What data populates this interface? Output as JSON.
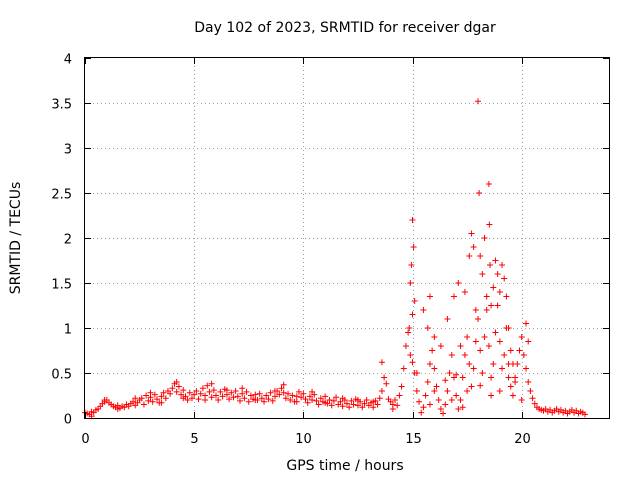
{
  "chart_data": {
    "type": "scatter",
    "title": "Day 102 of 2023, SRMTID for receiver dgar",
    "xlabel": "GPS time / hours",
    "ylabel": "SRMTID / TECUs",
    "xlim": [
      0,
      24
    ],
    "ylim": [
      0,
      4
    ],
    "xticks": [
      0,
      5,
      10,
      15,
      20
    ],
    "xtick_labels": [
      "0",
      "5",
      "10",
      "15",
      "20"
    ],
    "yticks": [
      0,
      0.5,
      1,
      1.5,
      2,
      2.5,
      3,
      3.5,
      4
    ],
    "ytick_labels": [
      "0",
      "0.5",
      "1",
      "1.5",
      "2",
      "2.5",
      "3",
      "3.5",
      "4"
    ],
    "grid": true,
    "marker": "+",
    "color": "#ff0000",
    "series": [
      {
        "name": "SRMTID",
        "points": [
          [
            0.0,
            0.06
          ],
          [
            0.1,
            0.05
          ],
          [
            0.2,
            0.04
          ],
          [
            0.3,
            0.07
          ],
          [
            0.4,
            0.06
          ],
          [
            0.5,
            0.09
          ],
          [
            0.6,
            0.1
          ],
          [
            0.7,
            0.13
          ],
          [
            0.8,
            0.16
          ],
          [
            0.9,
            0.18
          ],
          [
            1.0,
            0.2
          ],
          [
            1.1,
            0.17
          ],
          [
            1.2,
            0.15
          ],
          [
            1.3,
            0.13
          ],
          [
            1.4,
            0.12
          ],
          [
            1.5,
            0.14
          ],
          [
            1.6,
            0.11
          ],
          [
            1.7,
            0.13
          ],
          [
            1.8,
            0.12
          ],
          [
            1.9,
            0.15
          ],
          [
            2.0,
            0.13
          ],
          [
            2.1,
            0.16
          ],
          [
            2.2,
            0.18
          ],
          [
            2.3,
            0.14
          ],
          [
            2.4,
            0.17
          ],
          [
            2.5,
            0.2
          ],
          [
            2.6,
            0.22
          ],
          [
            2.7,
            0.15
          ],
          [
            2.8,
            0.25
          ],
          [
            2.9,
            0.19
          ],
          [
            3.0,
            0.23
          ],
          [
            3.1,
            0.18
          ],
          [
            3.2,
            0.26
          ],
          [
            3.3,
            0.21
          ],
          [
            3.4,
            0.17
          ],
          [
            3.5,
            0.24
          ],
          [
            3.6,
            0.28
          ],
          [
            3.7,
            0.22
          ],
          [
            3.8,
            0.3
          ],
          [
            3.9,
            0.27
          ],
          [
            4.0,
            0.33
          ],
          [
            4.1,
            0.38
          ],
          [
            4.2,
            0.29
          ],
          [
            4.3,
            0.35
          ],
          [
            4.4,
            0.26
          ],
          [
            4.5,
            0.31
          ],
          [
            4.6,
            0.24
          ],
          [
            4.7,
            0.2
          ],
          [
            4.8,
            0.28
          ],
          [
            4.9,
            0.22
          ],
          [
            5.0,
            0.26
          ],
          [
            5.1,
            0.3
          ],
          [
            5.2,
            0.21
          ],
          [
            5.3,
            0.27
          ],
          [
            5.4,
            0.33
          ],
          [
            5.5,
            0.25
          ],
          [
            5.6,
            0.36
          ],
          [
            5.7,
            0.29
          ],
          [
            5.8,
            0.23
          ],
          [
            5.9,
            0.31
          ],
          [
            6.0,
            0.25
          ],
          [
            6.1,
            0.2
          ],
          [
            6.2,
            0.29
          ],
          [
            6.3,
            0.24
          ],
          [
            6.4,
            0.32
          ],
          [
            6.5,
            0.26
          ],
          [
            6.6,
            0.21
          ],
          [
            6.7,
            0.28
          ],
          [
            6.8,
            0.23
          ],
          [
            6.9,
            0.3
          ],
          [
            7.0,
            0.24
          ],
          [
            7.1,
            0.19
          ],
          [
            7.2,
            0.27
          ],
          [
            7.3,
            0.22
          ],
          [
            7.4,
            0.29
          ],
          [
            7.5,
            0.18
          ],
          [
            7.6,
            0.25
          ],
          [
            7.7,
            0.21
          ],
          [
            7.8,
            0.26
          ],
          [
            7.9,
            0.2
          ],
          [
            8.0,
            0.27
          ],
          [
            8.1,
            0.22
          ],
          [
            8.2,
            0.18
          ],
          [
            8.3,
            0.25
          ],
          [
            8.4,
            0.21
          ],
          [
            8.5,
            0.28
          ],
          [
            8.6,
            0.19
          ],
          [
            8.7,
            0.24
          ],
          [
            8.8,
            0.3
          ],
          [
            8.9,
            0.26
          ],
          [
            9.0,
            0.33
          ],
          [
            9.1,
            0.28
          ],
          [
            9.2,
            0.22
          ],
          [
            9.3,
            0.27
          ],
          [
            9.4,
            0.2
          ],
          [
            9.5,
            0.25
          ],
          [
            9.6,
            0.18
          ],
          [
            9.7,
            0.24
          ],
          [
            9.8,
            0.29
          ],
          [
            9.9,
            0.23
          ],
          [
            10.0,
            0.27
          ],
          [
            10.1,
            0.21
          ],
          [
            10.2,
            0.17
          ],
          [
            10.3,
            0.24
          ],
          [
            10.4,
            0.2
          ],
          [
            10.5,
            0.26
          ],
          [
            10.6,
            0.19
          ],
          [
            10.7,
            0.15
          ],
          [
            10.8,
            0.22
          ],
          [
            10.9,
            0.18
          ],
          [
            11.0,
            0.24
          ],
          [
            11.1,
            0.16
          ],
          [
            11.2,
            0.2
          ],
          [
            11.3,
            0.14
          ],
          [
            11.4,
            0.19
          ],
          [
            11.5,
            0.23
          ],
          [
            11.6,
            0.15
          ],
          [
            11.7,
            0.18
          ],
          [
            11.8,
            0.13
          ],
          [
            11.9,
            0.2
          ],
          [
            12.0,
            0.16
          ],
          [
            12.1,
            0.12
          ],
          [
            12.2,
            0.19
          ],
          [
            12.3,
            0.15
          ],
          [
            12.4,
            0.21
          ],
          [
            12.5,
            0.14
          ],
          [
            12.6,
            0.18
          ],
          [
            12.7,
            0.12
          ],
          [
            12.8,
            0.16
          ],
          [
            12.9,
            0.2
          ],
          [
            13.0,
            0.14
          ],
          [
            13.1,
            0.17
          ],
          [
            13.2,
            0.12
          ],
          [
            13.3,
            0.19
          ],
          [
            13.4,
            0.15
          ],
          [
            13.5,
            0.22
          ],
          [
            13.6,
            0.3
          ],
          [
            13.7,
            0.45
          ],
          [
            13.8,
            0.38
          ],
          [
            13.9,
            0.21
          ],
          [
            14.0,
            0.18
          ],
          [
            14.1,
            0.15
          ],
          [
            14.2,
            0.2
          ],
          [
            14.3,
            0.14
          ],
          [
            14.4,
            0.25
          ],
          [
            14.5,
            0.35
          ],
          [
            14.6,
            0.55
          ],
          [
            14.7,
            0.8
          ],
          [
            14.8,
            0.95
          ],
          [
            14.9,
            0.7
          ],
          [
            15.0,
            0.62
          ],
          [
            15.1,
            0.5
          ],
          [
            15.2,
            0.3
          ],
          [
            15.3,
            0.18
          ],
          [
            15.4,
            0.06
          ],
          [
            15.5,
            0.12
          ],
          [
            15.6,
            0.25
          ],
          [
            15.7,
            0.4
          ],
          [
            15.8,
            0.6
          ],
          [
            15.9,
            0.75
          ],
          [
            16.0,
            0.55
          ],
          [
            16.1,
            0.35
          ],
          [
            16.2,
            0.2
          ],
          [
            16.3,
            0.1
          ],
          [
            16.4,
            0.05
          ],
          [
            16.5,
            0.15
          ],
          [
            16.6,
            0.3
          ],
          [
            16.7,
            0.5
          ],
          [
            16.8,
            0.7
          ],
          [
            16.9,
            0.45
          ],
          [
            17.0,
            0.25
          ],
          [
            17.1,
            0.1
          ],
          [
            17.2,
            0.2
          ],
          [
            17.3,
            0.45
          ],
          [
            17.4,
            0.7
          ],
          [
            17.5,
            0.9
          ],
          [
            17.6,
            0.6
          ],
          [
            17.7,
            0.35
          ],
          [
            17.8,
            0.55
          ],
          [
            17.9,
            0.85
          ],
          [
            18.0,
            1.1
          ],
          [
            18.1,
            0.75
          ],
          [
            18.2,
            0.5
          ],
          [
            18.3,
            0.9
          ],
          [
            18.4,
            1.2
          ],
          [
            18.5,
            0.8
          ],
          [
            18.6,
            0.45
          ],
          [
            18.7,
            0.6
          ],
          [
            18.8,
            0.95
          ],
          [
            18.9,
            1.25
          ],
          [
            19.0,
            0.85
          ],
          [
            19.1,
            0.55
          ],
          [
            19.2,
            0.7
          ],
          [
            19.3,
            1.0
          ],
          [
            19.4,
            0.6
          ],
          [
            19.5,
            0.35
          ],
          [
            19.6,
            0.25
          ],
          [
            19.7,
            0.4
          ],
          [
            19.8,
            0.6
          ],
          [
            19.9,
            0.75
          ],
          [
            20.0,
            0.9
          ],
          [
            20.1,
            0.7
          ],
          [
            20.2,
            0.55
          ],
          [
            20.3,
            0.4
          ],
          [
            20.4,
            0.3
          ],
          [
            20.5,
            0.22
          ],
          [
            20.6,
            0.16
          ],
          [
            20.7,
            0.12
          ],
          [
            20.8,
            0.1
          ],
          [
            20.9,
            0.09
          ],
          [
            21.0,
            0.08
          ],
          [
            21.1,
            0.1
          ],
          [
            21.2,
            0.07
          ],
          [
            21.3,
            0.09
          ],
          [
            21.4,
            0.06
          ],
          [
            21.5,
            0.08
          ],
          [
            21.6,
            0.1
          ],
          [
            21.7,
            0.07
          ],
          [
            21.8,
            0.09
          ],
          [
            21.9,
            0.06
          ],
          [
            22.0,
            0.08
          ],
          [
            22.1,
            0.05
          ],
          [
            22.2,
            0.07
          ],
          [
            22.3,
            0.09
          ],
          [
            22.4,
            0.06
          ],
          [
            22.5,
            0.08
          ],
          [
            22.6,
            0.05
          ],
          [
            22.7,
            0.07
          ],
          [
            22.8,
            0.06
          ],
          [
            22.9,
            0.04
          ],
          [
            0.3,
            0.02
          ],
          [
            0.9,
            0.2
          ],
          [
            1.5,
            0.1
          ],
          [
            2.3,
            0.22
          ],
          [
            3.0,
            0.28
          ],
          [
            3.5,
            0.17
          ],
          [
            4.2,
            0.4
          ],
          [
            4.5,
            0.22
          ],
          [
            5.5,
            0.2
          ],
          [
            5.8,
            0.38
          ],
          [
            6.5,
            0.31
          ],
          [
            7.2,
            0.33
          ],
          [
            7.8,
            0.2
          ],
          [
            8.7,
            0.3
          ],
          [
            9.1,
            0.37
          ],
          [
            9.7,
            0.18
          ],
          [
            10.4,
            0.29
          ],
          [
            11.0,
            0.17
          ],
          [
            11.8,
            0.22
          ],
          [
            12.5,
            0.2
          ],
          [
            13.2,
            0.18
          ],
          [
            13.6,
            0.62
          ],
          [
            14.1,
            0.1
          ],
          [
            14.9,
            1.5
          ],
          [
            14.95,
            1.7
          ],
          [
            15.0,
            2.2
          ],
          [
            15.05,
            1.9
          ],
          [
            15.1,
            1.3
          ],
          [
            15.0,
            1.15
          ],
          [
            14.85,
            1.0
          ],
          [
            15.2,
            0.5
          ],
          [
            15.5,
            1.2
          ],
          [
            15.7,
            1.0
          ],
          [
            15.8,
            1.35
          ],
          [
            16.0,
            0.9
          ],
          [
            16.3,
            0.8
          ],
          [
            16.6,
            1.1
          ],
          [
            16.9,
            1.35
          ],
          [
            17.1,
            1.5
          ],
          [
            17.2,
            0.8
          ],
          [
            17.4,
            1.4
          ],
          [
            17.6,
            1.8
          ],
          [
            17.7,
            2.05
          ],
          [
            17.8,
            1.9
          ],
          [
            17.9,
            1.2
          ],
          [
            18.0,
            3.52
          ],
          [
            18.05,
            2.5
          ],
          [
            18.1,
            1.8
          ],
          [
            18.2,
            1.6
          ],
          [
            18.3,
            2.0
          ],
          [
            18.4,
            1.35
          ],
          [
            18.5,
            2.6
          ],
          [
            18.52,
            2.15
          ],
          [
            18.55,
            1.7
          ],
          [
            18.6,
            1.25
          ],
          [
            18.7,
            1.45
          ],
          [
            18.8,
            1.75
          ],
          [
            18.9,
            1.6
          ],
          [
            19.0,
            1.4
          ],
          [
            19.1,
            1.7
          ],
          [
            19.2,
            1.55
          ],
          [
            19.3,
            1.35
          ],
          [
            19.4,
            1.0
          ],
          [
            19.5,
            0.75
          ],
          [
            19.6,
            0.6
          ],
          [
            19.7,
            0.45
          ],
          [
            20.2,
            1.05
          ],
          [
            20.3,
            0.85
          ],
          [
            17.5,
            0.3
          ],
          [
            18.6,
            0.25
          ],
          [
            16.0,
            0.3
          ],
          [
            16.8,
            0.2
          ],
          [
            17.0,
            0.48
          ],
          [
            19.0,
            0.3
          ],
          [
            19.4,
            0.45
          ],
          [
            15.8,
            0.15
          ],
          [
            16.5,
            0.42
          ],
          [
            17.3,
            0.12
          ],
          [
            18.1,
            0.36
          ],
          [
            20.0,
            0.2
          ]
        ]
      }
    ]
  }
}
